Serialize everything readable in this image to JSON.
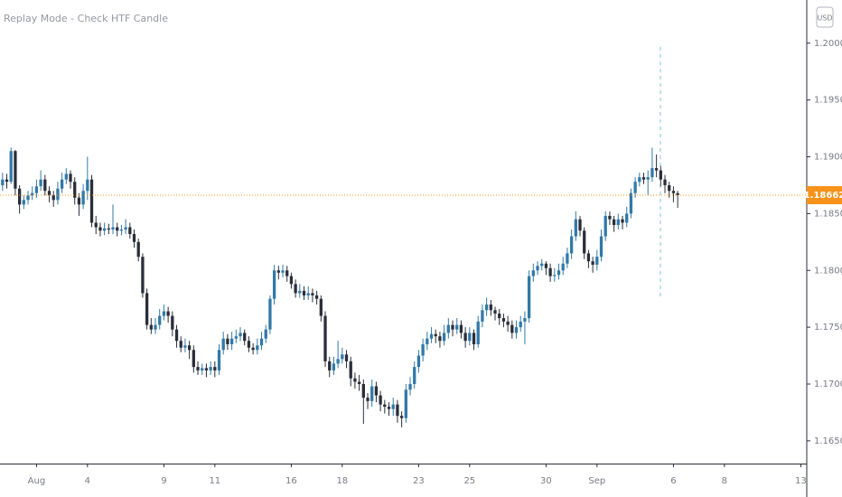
{
  "chart_data": {
    "type": "candlestick",
    "title": "Replay Mode - Check HTF Candle",
    "currency": "USD",
    "up_color": "#3179a8",
    "down_color": "#2a2e39",
    "price_line_color": "#f7931a",
    "last_price": 1.18662,
    "ylim": [
      1.163,
      1.2038
    ],
    "yticks": [
      {
        "value": 1.2,
        "label": "1.20000"
      },
      {
        "value": 1.195,
        "label": "1.19500"
      },
      {
        "value": 1.19,
        "label": "1.19000"
      },
      {
        "value": 1.185,
        "label": "1.18500"
      },
      {
        "value": 1.18,
        "label": "1.18000"
      },
      {
        "value": 1.175,
        "label": "1.17500"
      },
      {
        "value": 1.17,
        "label": "1.17000"
      },
      {
        "value": 1.165,
        "label": "1.16500"
      }
    ],
    "xlim": [
      -0.6,
      189.4
    ],
    "xticks": [
      {
        "value": 8,
        "label": "Aug"
      },
      {
        "value": 20,
        "label": "4"
      },
      {
        "value": 38,
        "label": "9"
      },
      {
        "value": 50,
        "label": "11"
      },
      {
        "value": 68,
        "label": "16"
      },
      {
        "value": 80,
        "label": "18"
      },
      {
        "value": 98,
        "label": "23"
      },
      {
        "value": 110,
        "label": "25"
      },
      {
        "value": 128,
        "label": "30"
      },
      {
        "value": 140,
        "label": "Sep"
      },
      {
        "value": 158,
        "label": "6"
      },
      {
        "value": 170,
        "label": "8"
      },
      {
        "value": 188,
        "label": "13"
      }
    ],
    "open": [
      1.1875,
      1.188,
      1.1878,
      1.1905,
      1.1872,
      1.1858,
      1.1862,
      1.1866,
      1.1868,
      1.1874,
      1.188,
      1.187,
      1.1866,
      1.1862,
      1.1872,
      1.188,
      1.1885,
      1.1878,
      1.1864,
      1.1858,
      1.187,
      1.188,
      1.1842,
      1.1838,
      1.1835,
      1.1837,
      1.1836,
      1.1838,
      1.1835,
      1.1836,
      1.1838,
      1.1832,
      1.1825,
      1.1812,
      1.178,
      1.1752,
      1.1748,
      1.1752,
      1.176,
      1.1764,
      1.176,
      1.1748,
      1.1738,
      1.1732,
      1.1734,
      1.173,
      1.1715,
      1.1712,
      1.1714,
      1.1712,
      1.1715,
      1.1712,
      1.173,
      1.174,
      1.1735,
      1.174,
      1.1742,
      1.1745,
      1.1738,
      1.1732,
      1.173,
      1.1734,
      1.174,
      1.1748,
      1.1775,
      1.18,
      1.1798,
      1.18,
      1.1795,
      1.1788,
      1.178,
      1.1782,
      1.1778,
      1.178,
      1.1778,
      1.1775,
      1.176,
      1.172,
      1.1712,
      1.1718,
      1.1722,
      1.1726,
      1.172,
      1.1705,
      1.1702,
      1.17,
      1.1688,
      1.1685,
      1.1698,
      1.169,
      1.1682,
      1.168,
      1.1678,
      1.1682,
      1.1672,
      1.167,
      1.1695,
      1.17,
      1.1715,
      1.1725,
      1.1735,
      1.174,
      1.1744,
      1.1742,
      1.1738,
      1.1745,
      1.1752,
      1.1748,
      1.1752,
      1.1745,
      1.1738,
      1.1745,
      1.1735,
      1.1755,
      1.1765,
      1.177,
      1.1765,
      1.1762,
      1.1758,
      1.1755,
      1.1752,
      1.1745,
      1.175,
      1.1755,
      1.1758,
      1.1795,
      1.18,
      1.1804,
      1.1806,
      1.1802,
      1.1795,
      1.1796,
      1.18,
      1.1806,
      1.1815,
      1.183,
      1.1845,
      1.1835,
      1.1815,
      1.1808,
      1.1805,
      1.1812,
      1.183,
      1.1848,
      1.1845,
      1.184,
      1.1845,
      1.1842,
      1.185,
      1.1868,
      1.1878,
      1.1882,
      1.188,
      1.1882,
      1.189,
      1.1888,
      1.188,
      1.1875,
      1.187,
      1.1868
    ],
    "high": [
      1.1886,
      1.1885,
      1.1908,
      1.1906,
      1.1875,
      1.1866,
      1.187,
      1.1874,
      1.188,
      1.1888,
      1.1884,
      1.1874,
      1.187,
      1.1878,
      1.1886,
      1.189,
      1.1888,
      1.1882,
      1.1868,
      1.1876,
      1.19,
      1.1884,
      1.1848,
      1.1842,
      1.1842,
      1.1841,
      1.1858,
      1.1842,
      1.184,
      1.1845,
      1.1842,
      1.1836,
      1.1828,
      1.1815,
      1.1784,
      1.1758,
      1.1758,
      1.1766,
      1.177,
      1.1768,
      1.1764,
      1.1752,
      1.1742,
      1.174,
      1.1738,
      1.1734,
      1.172,
      1.1718,
      1.1718,
      1.172,
      1.172,
      1.1735,
      1.1746,
      1.1744,
      1.1746,
      1.1748,
      1.175,
      1.1748,
      1.1742,
      1.1736,
      1.174,
      1.1746,
      1.1752,
      1.1778,
      1.1805,
      1.1804,
      1.1805,
      1.1804,
      1.1798,
      1.1792,
      1.1788,
      1.1786,
      1.1786,
      1.1784,
      1.1782,
      1.1778,
      1.1764,
      1.1724,
      1.1724,
      1.1738,
      1.1732,
      1.173,
      1.1724,
      1.171,
      1.1708,
      1.1704,
      1.1692,
      1.1704,
      1.1702,
      1.1694,
      1.1686,
      1.1684,
      1.1688,
      1.1686,
      1.1676,
      1.17,
      1.1706,
      1.172,
      1.173,
      1.174,
      1.1746,
      1.175,
      1.1748,
      1.1746,
      1.1752,
      1.1758,
      1.1756,
      1.1758,
      1.1756,
      1.175,
      1.175,
      1.1748,
      1.176,
      1.177,
      1.1776,
      1.1774,
      1.1768,
      1.1766,
      1.1762,
      1.176,
      1.1756,
      1.1756,
      1.176,
      1.1764,
      1.18,
      1.1806,
      1.1808,
      1.181,
      1.1808,
      1.1806,
      1.1802,
      1.1806,
      1.1812,
      1.182,
      1.1836,
      1.1852,
      1.1848,
      1.1838,
      1.1818,
      1.1812,
      1.1818,
      1.1836,
      1.1852,
      1.1852,
      1.1848,
      1.185,
      1.1848,
      1.1856,
      1.1872,
      1.1882,
      1.1886,
      1.1886,
      1.1888,
      1.1908,
      1.1902,
      1.1892,
      1.1884,
      1.1878,
      1.1874,
      1.187
    ],
    "low": [
      1.187,
      1.1872,
      1.1876,
      1.1866,
      1.185,
      1.1854,
      1.1858,
      1.1862,
      1.1864,
      1.187,
      1.1866,
      1.186,
      1.1856,
      1.1858,
      1.1868,
      1.1876,
      1.1872,
      1.1858,
      1.1848,
      1.1854,
      1.1862,
      1.1838,
      1.1832,
      1.183,
      1.1831,
      1.1832,
      1.1832,
      1.183,
      1.1831,
      1.1832,
      1.1828,
      1.182,
      1.1808,
      1.1776,
      1.1748,
      1.1744,
      1.1744,
      1.1748,
      1.1756,
      1.1754,
      1.1742,
      1.1732,
      1.1728,
      1.1728,
      1.1722,
      1.171,
      1.1708,
      1.1708,
      1.1706,
      1.1708,
      1.1706,
      1.1708,
      1.1726,
      1.173,
      1.173,
      1.1736,
      1.1738,
      1.1734,
      1.1728,
      1.1726,
      1.1726,
      1.173,
      1.1736,
      1.1744,
      1.177,
      1.1792,
      1.1794,
      1.179,
      1.1784,
      1.1776,
      1.1776,
      1.1774,
      1.1774,
      1.1772,
      1.177,
      1.1755,
      1.1715,
      1.1706,
      1.1708,
      1.1714,
      1.1718,
      1.1714,
      1.1698,
      1.1696,
      1.1694,
      1.1665,
      1.1678,
      1.168,
      1.1684,
      1.1676,
      1.1674,
      1.1672,
      1.1672,
      1.1666,
      1.1662,
      1.1666,
      1.169,
      1.1696,
      1.171,
      1.172,
      1.173,
      1.1736,
      1.1736,
      1.1732,
      1.1734,
      1.174,
      1.1742,
      1.1744,
      1.174,
      1.1732,
      1.1734,
      1.173,
      1.1732,
      1.175,
      1.176,
      1.176,
      1.1756,
      1.1752,
      1.175,
      1.1746,
      1.174,
      1.174,
      1.1746,
      1.1735,
      1.1754,
      1.179,
      1.1796,
      1.18,
      1.1796,
      1.179,
      1.179,
      1.1792,
      1.1796,
      1.1802,
      1.181,
      1.1826,
      1.183,
      1.181,
      1.1802,
      1.1798,
      1.18,
      1.1808,
      1.1826,
      1.184,
      1.1834,
      1.1836,
      1.1836,
      1.1838,
      1.1846,
      1.1864,
      1.1874,
      1.1876,
      1.1866,
      1.1878,
      1.1882,
      1.1874,
      1.1868,
      1.1864,
      1.186,
      1.1855
    ],
    "close": [
      1.188,
      1.1878,
      1.1905,
      1.1872,
      1.1858,
      1.1862,
      1.1866,
      1.1868,
      1.1874,
      1.188,
      1.187,
      1.1866,
      1.1862,
      1.1872,
      1.188,
      1.1885,
      1.1878,
      1.1864,
      1.1858,
      1.187,
      1.188,
      1.1842,
      1.1838,
      1.1835,
      1.1837,
      1.1836,
      1.1838,
      1.1835,
      1.1836,
      1.1838,
      1.1832,
      1.1825,
      1.1812,
      1.178,
      1.1752,
      1.1748,
      1.1752,
      1.176,
      1.1764,
      1.176,
      1.1748,
      1.1738,
      1.1732,
      1.1734,
      1.173,
      1.1715,
      1.1712,
      1.1714,
      1.1712,
      1.1715,
      1.1712,
      1.173,
      1.174,
      1.1735,
      1.174,
      1.1742,
      1.1745,
      1.1738,
      1.1732,
      1.173,
      1.1734,
      1.174,
      1.1748,
      1.1775,
      1.18,
      1.1798,
      1.18,
      1.1795,
      1.1788,
      1.178,
      1.1782,
      1.1778,
      1.178,
      1.1778,
      1.1775,
      1.176,
      1.172,
      1.1712,
      1.1718,
      1.1722,
      1.1726,
      1.172,
      1.1705,
      1.1702,
      1.17,
      1.1688,
      1.1685,
      1.1698,
      1.169,
      1.1682,
      1.168,
      1.1678,
      1.1682,
      1.1672,
      1.167,
      1.1695,
      1.17,
      1.1715,
      1.1725,
      1.1735,
      1.174,
      1.1744,
      1.1742,
      1.1738,
      1.1745,
      1.1752,
      1.1748,
      1.1752,
      1.1745,
      1.1738,
      1.1745,
      1.1735,
      1.1755,
      1.1765,
      1.177,
      1.1765,
      1.1762,
      1.1758,
      1.1755,
      1.1752,
      1.1745,
      1.175,
      1.1755,
      1.1758,
      1.1795,
      1.18,
      1.1804,
      1.1806,
      1.1802,
      1.1795,
      1.1796,
      1.18,
      1.1806,
      1.1815,
      1.183,
      1.1845,
      1.1835,
      1.1815,
      1.1808,
      1.1805,
      1.1812,
      1.183,
      1.1848,
      1.1845,
      1.184,
      1.1845,
      1.1842,
      1.185,
      1.1868,
      1.1878,
      1.1882,
      1.188,
      1.1882,
      1.189,
      1.1888,
      1.188,
      1.1875,
      1.187,
      1.1868,
      1.18662
    ]
  }
}
